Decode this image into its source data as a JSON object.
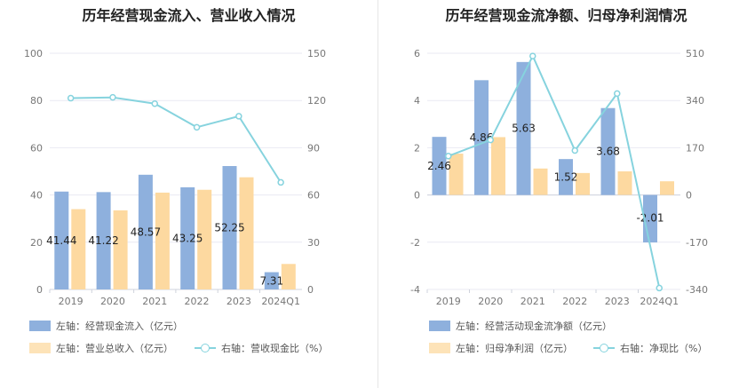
{
  "colors": {
    "bar_primary": "#8eb0dd",
    "bar_secondary": "#fdd9a0",
    "line": "#86d3de",
    "grid": "#e9e9f3",
    "tick": "#777777",
    "label": "#222222"
  },
  "chart_data": [
    {
      "type": "bar",
      "title": "历年经营现金流入、营业收入情况",
      "categories": [
        "2019",
        "2020",
        "2021",
        "2022",
        "2023",
        "2024Q1"
      ],
      "left_axis": {
        "ylim": [
          0,
          100
        ],
        "ticks": [
          0,
          20,
          40,
          60,
          80,
          100
        ]
      },
      "right_axis": {
        "ylim": [
          0,
          150
        ],
        "ticks": [
          0,
          30,
          60,
          90,
          120,
          150
        ]
      },
      "series": [
        {
          "name": "左轴：经营现金流入（亿元）",
          "type": "bar",
          "axis": "left",
          "values": [
            41.44,
            41.22,
            48.57,
            43.25,
            52.25,
            7.31
          ],
          "labels": [
            "41.44",
            "41.22",
            "48.57",
            "43.25",
            "52.25",
            "7.31"
          ]
        },
        {
          "name": "左轴：营业总收入（亿元）",
          "type": "bar",
          "axis": "left",
          "values": [
            34.0,
            33.5,
            41.0,
            42.2,
            47.5,
            10.8
          ]
        },
        {
          "name": "右轴：营收现金比（%）",
          "type": "line",
          "axis": "right",
          "values": [
            121.5,
            122.0,
            118.0,
            103.0,
            110.0,
            68.0
          ]
        }
      ]
    },
    {
      "type": "bar",
      "title": "历年经营现金流净额、归母净利润情况",
      "categories": [
        "2019",
        "2020",
        "2021",
        "2022",
        "2023",
        "2024Q1"
      ],
      "left_axis": {
        "ylim": [
          -4,
          6
        ],
        "ticks": [
          -4,
          -2,
          0,
          2,
          4,
          6
        ]
      },
      "right_axis": {
        "ylim": [
          -340,
          510
        ],
        "ticks": [
          -340,
          -170,
          0,
          170,
          340,
          510
        ]
      },
      "series": [
        {
          "name": "左轴：经营活动现金流净额（亿元）",
          "type": "bar",
          "axis": "left",
          "values": [
            2.46,
            4.86,
            5.63,
            1.52,
            3.68,
            -2.01
          ],
          "labels": [
            "2.46",
            "4.86",
            "5.63",
            "1.52",
            "3.68",
            "-2.01"
          ]
        },
        {
          "name": "左轴：归母净利润（亿元）",
          "type": "bar",
          "axis": "left",
          "values": [
            1.75,
            2.45,
            1.12,
            0.93,
            1.0,
            0.58
          ]
        },
        {
          "name": "右轴：净现比（%）",
          "type": "line",
          "axis": "right",
          "values": [
            140,
            198,
            500,
            160,
            365,
            -335
          ]
        }
      ]
    }
  ]
}
